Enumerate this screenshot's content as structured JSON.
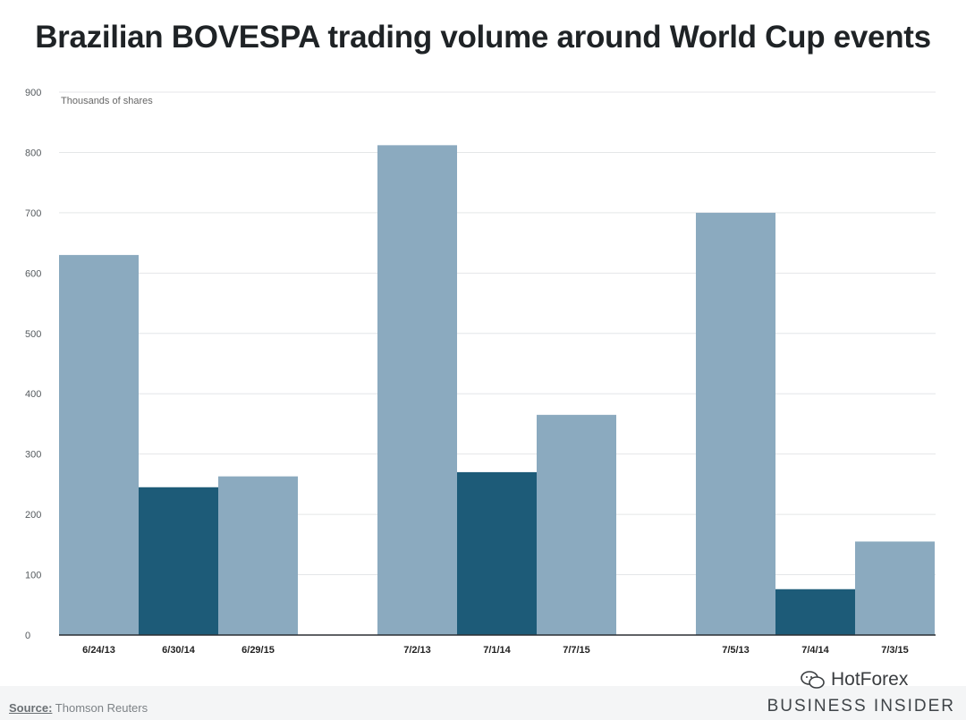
{
  "page": {
    "title": "Brazilian BOVESPA trading volume around World Cup events"
  },
  "chart_data": {
    "type": "bar",
    "title": "Brazilian BOVESPA trading volume around World Cup events",
    "ylabel": "Thousands of shares",
    "ylim": [
      0,
      900
    ],
    "yticks": [
      0,
      100,
      200,
      300,
      400,
      500,
      600,
      700,
      800,
      900
    ],
    "grid": true,
    "groups": [
      {
        "bars": [
          {
            "label": "6/24/13",
            "value": 630,
            "highlight": false
          },
          {
            "label": "6/30/14",
            "value": 245,
            "highlight": true
          },
          {
            "label": "6/29/15",
            "value": 263,
            "highlight": false
          }
        ]
      },
      {
        "bars": [
          {
            "label": "7/2/13",
            "value": 812,
            "highlight": false
          },
          {
            "label": "7/1/14",
            "value": 270,
            "highlight": true
          },
          {
            "label": "7/7/15",
            "value": 365,
            "highlight": false
          }
        ]
      },
      {
        "bars": [
          {
            "label": "7/5/13",
            "value": 700,
            "highlight": false
          },
          {
            "label": "7/4/14",
            "value": 76,
            "highlight": true
          },
          {
            "label": "7/3/15",
            "value": 155,
            "highlight": false
          }
        ]
      }
    ],
    "colors": {
      "normal": "#8baabf",
      "highlight": "#1d5b78",
      "grid": "#e4e6e8",
      "axis": "#2b2f33"
    }
  },
  "footer": {
    "source_label": "Source:",
    "source_text": "Thomson Reuters",
    "brand": "BUSINESS INSIDER",
    "watermark": "HotForex"
  }
}
